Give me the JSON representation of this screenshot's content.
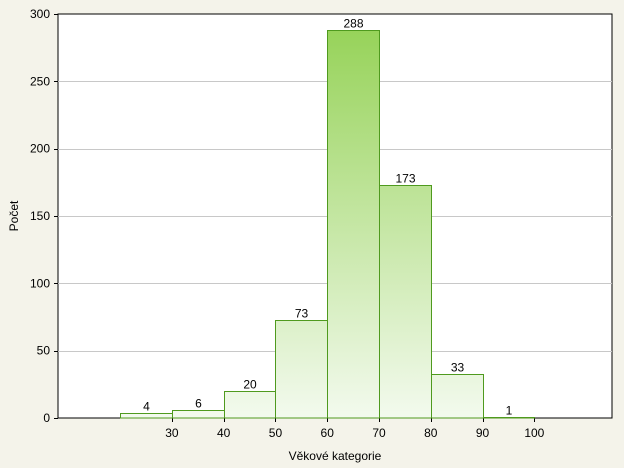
{
  "chart_data": {
    "type": "bar",
    "bins": [
      {
        "from": 20,
        "to": 30,
        "value": 4
      },
      {
        "from": 30,
        "to": 40,
        "value": 6
      },
      {
        "from": 40,
        "to": 50,
        "value": 20
      },
      {
        "from": 50,
        "to": 60,
        "value": 73
      },
      {
        "from": 60,
        "to": 70,
        "value": 288
      },
      {
        "from": 70,
        "to": 80,
        "value": 173
      },
      {
        "from": 80,
        "to": 90,
        "value": 33
      },
      {
        "from": 90,
        "to": 100,
        "value": 1
      }
    ],
    "values": [
      4,
      6,
      20,
      73,
      288,
      173,
      33,
      1
    ],
    "xlabel": "Věkové kategorie",
    "ylabel": "Počet",
    "xlim": [
      8,
      115
    ],
    "ylim": [
      0,
      300
    ],
    "xticks": [
      30,
      40,
      50,
      60,
      70,
      80,
      90,
      100
    ],
    "yticks": [
      0,
      50,
      100,
      150,
      200,
      250,
      300
    ],
    "grid": true,
    "colors": {
      "bar_top": "#97d35a",
      "bar_bottom": "#f3faee",
      "bar_stroke": "#4f9a1e",
      "grid": "#c8c8c8",
      "background": "#f4f3ea",
      "plot_background": "#ffffff"
    }
  }
}
